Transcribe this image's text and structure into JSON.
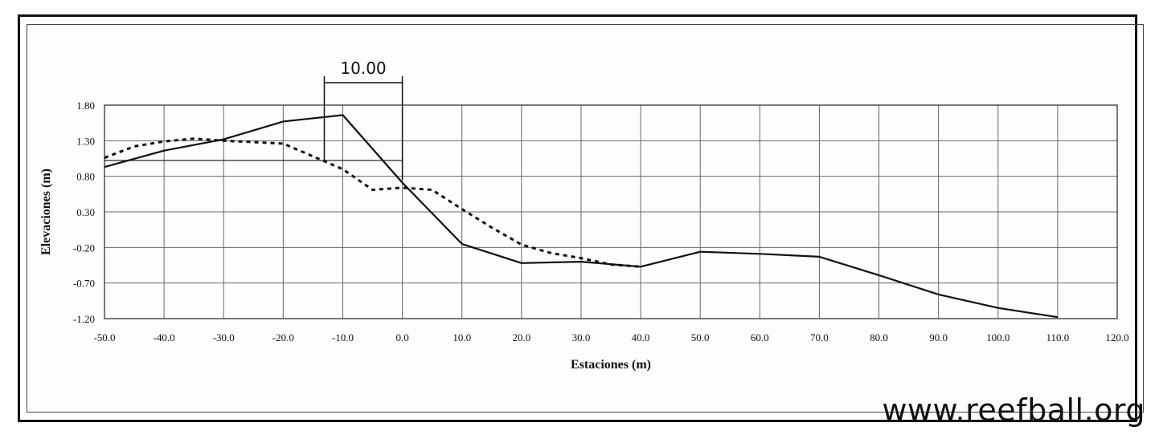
{
  "watermark": "www.reefball.org",
  "chart_data": {
    "type": "line",
    "xlabel": "Estaciones (m)",
    "ylabel": "Elevaciones (m)",
    "xlim": [
      -50,
      120
    ],
    "ylim": [
      -1.2,
      1.8
    ],
    "x_ticks": [
      "-50.0",
      "-40.0",
      "-30.0",
      "-20.0",
      "-10.0",
      "0.0",
      "10.0",
      "20.0",
      "30.0",
      "40.0",
      "50.0",
      "60.0",
      "70.0",
      "80.0",
      "90.0",
      "100.0",
      "110.0",
      "120.0"
    ],
    "y_ticks": [
      "1.80",
      "1.30",
      "0.80",
      "0.30",
      "-0.20",
      "-0.70",
      "-1.20"
    ],
    "grid": true,
    "annotation": {
      "label": "10.00",
      "x_from": -10,
      "x_to": 0,
      "reference_elevation": 1.0
    },
    "series": [
      {
        "style": "solid",
        "color": "#111111",
        "x": [
          -50,
          -40,
          -30,
          -20,
          -10,
          0,
          10,
          20,
          30,
          40,
          50,
          60,
          70,
          80,
          90,
          100,
          110
        ],
        "y": [
          0.93,
          1.16,
          1.32,
          1.57,
          1.66,
          0.71,
          -0.15,
          -0.42,
          -0.4,
          -0.47,
          -0.26,
          -0.29,
          -0.33,
          -0.59,
          -0.86,
          -1.05,
          -1.18
        ]
      },
      {
        "style": "dotted",
        "color": "#111111",
        "x": [
          -50,
          -45,
          -40,
          -35,
          -30,
          -25,
          -20,
          -15,
          -10,
          -5,
          0,
          5,
          10,
          15,
          20,
          25,
          30,
          35,
          40
        ],
        "y": [
          1.06,
          1.22,
          1.29,
          1.33,
          1.3,
          1.28,
          1.26,
          1.08,
          0.9,
          0.61,
          0.64,
          0.61,
          0.34,
          0.08,
          -0.16,
          -0.28,
          -0.35,
          -0.44,
          -0.47
        ]
      }
    ]
  }
}
